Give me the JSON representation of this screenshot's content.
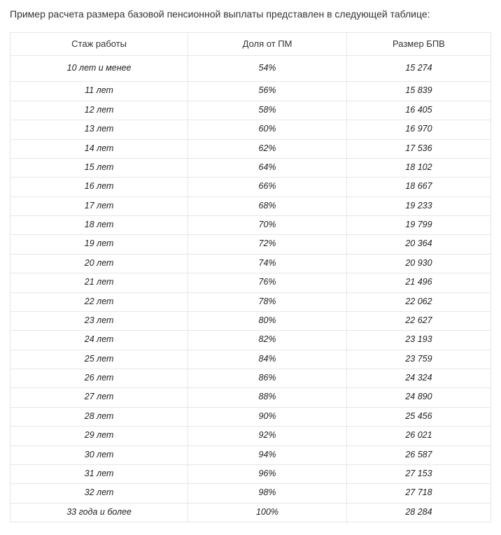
{
  "title": "Пример расчета размера базовой пенсионной выплаты представлен в следующей таблице:",
  "table": {
    "columns": [
      "Стаж работы",
      "Доля от ПМ",
      "Размер БПВ"
    ],
    "rows": [
      {
        "stage": "10 лет и менее",
        "share": "54%",
        "amount": "15 274"
      },
      {
        "stage": "11 лет",
        "share": "56%",
        "amount": "15 839"
      },
      {
        "stage": "12 лет",
        "share": "58%",
        "amount": "16 405"
      },
      {
        "stage": "13 лет",
        "share": "60%",
        "amount": "16 970"
      },
      {
        "stage": "14 лет",
        "share": "62%",
        "amount": "17 536"
      },
      {
        "stage": "15 лет",
        "share": "64%",
        "amount": "18 102"
      },
      {
        "stage": "16 лет",
        "share": "66%",
        "amount": "18 667"
      },
      {
        "stage": "17 лет",
        "share": "68%",
        "amount": "19 233"
      },
      {
        "stage": "18 лет",
        "share": "70%",
        "amount": "19 799"
      },
      {
        "stage": "19 лет",
        "share": "72%",
        "amount": "20 364"
      },
      {
        "stage": "20 лет",
        "share": "74%",
        "amount": "20 930"
      },
      {
        "stage": "21 лет",
        "share": "76%",
        "amount": "21 496"
      },
      {
        "stage": "22 лет",
        "share": "78%",
        "amount": "22 062"
      },
      {
        "stage": "23 лет",
        "share": "80%",
        "amount": "22 627"
      },
      {
        "stage": "24 лет",
        "share": "82%",
        "amount": "23 193"
      },
      {
        "stage": "25 лет",
        "share": "84%",
        "amount": "23 759"
      },
      {
        "stage": "26 лет",
        "share": "86%",
        "amount": "24 324"
      },
      {
        "stage": "27 лет",
        "share": "88%",
        "amount": "24 890"
      },
      {
        "stage": "28 лет",
        "share": "90%",
        "amount": "25 456"
      },
      {
        "stage": "29 лет",
        "share": "92%",
        "amount": "26 021"
      },
      {
        "stage": "30 лет",
        "share": "94%",
        "amount": "26 587"
      },
      {
        "stage": "31 лет",
        "share": "96%",
        "amount": "27 153"
      },
      {
        "stage": "32 лет",
        "share": "98%",
        "amount": "27 718"
      },
      {
        "stage": "33 года и более",
        "share": "100%",
        "amount": "28 284"
      }
    ],
    "styling": {
      "type": "table",
      "border_color": "#e6e6e6",
      "background_color": "#ffffff",
      "header_font_size_pt": 10,
      "body_font_size_pt": 9.5,
      "body_font_style": "italic",
      "text_color": "#333333",
      "column_widths_pct": [
        37,
        33,
        30
      ],
      "text_align": "center",
      "first_data_row_extra_padding": true
    }
  }
}
